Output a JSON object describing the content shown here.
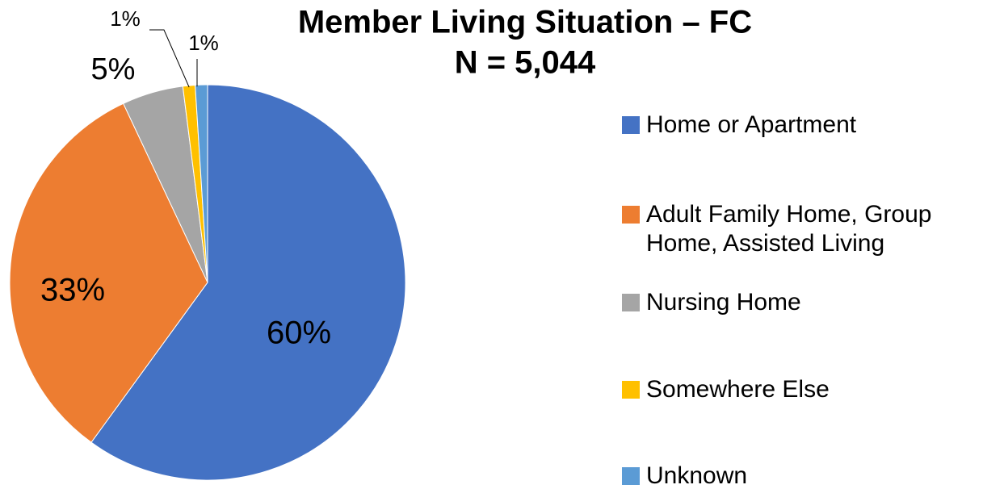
{
  "chart_data": {
    "type": "pie",
    "title": "Member Living Situation – FC",
    "subtitle": "N = 5,044",
    "categories": [
      "Home or Apartment",
      "Adult Family Home, Group Home, Assisted Living",
      "Nursing Home",
      "Somewhere Else",
      "Unknown"
    ],
    "values": [
      60,
      33,
      5,
      1,
      1
    ],
    "value_labels": [
      "60%",
      "33%",
      "5%",
      "1%",
      "1%"
    ],
    "colors": [
      "#4472c4",
      "#ed7d31",
      "#a5a5a5",
      "#ffc000",
      "#5b9bd5"
    ],
    "legend": "right"
  }
}
